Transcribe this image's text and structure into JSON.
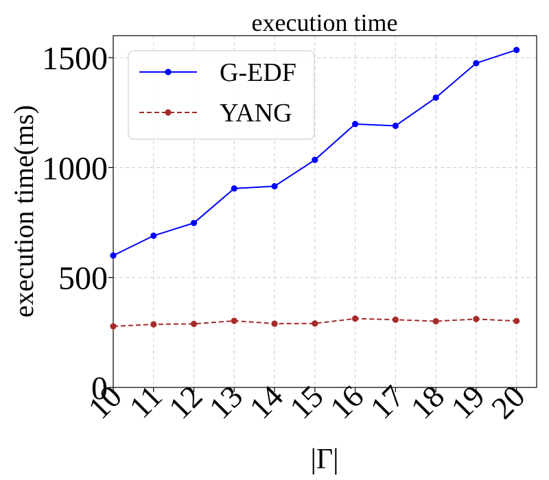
{
  "chart_data": {
    "type": "line",
    "title": "execution time",
    "xlabel": "|Γ|",
    "ylabel": "execution time(ms)",
    "x": [
      10,
      11,
      12,
      13,
      14,
      15,
      16,
      17,
      18,
      19,
      20
    ],
    "xticks": [
      "10",
      "11",
      "12",
      "13",
      "14",
      "15",
      "16",
      "17",
      "18",
      "19",
      "20"
    ],
    "yticks": [
      "0",
      "500",
      "1000",
      "1500"
    ],
    "ylim": [
      0,
      1600
    ],
    "xlim": [
      10,
      20.5
    ],
    "grid": true,
    "legend_position": "top-left",
    "series": [
      {
        "name": "G-EDF",
        "color": "#0000ff",
        "line_style": "solid",
        "values": [
          600,
          690,
          748,
          905,
          915,
          1035,
          1198,
          1190,
          1318,
          1475,
          1535
        ]
      },
      {
        "name": "YANG",
        "color": "#a52a2a",
        "line_style": "dashed",
        "values": [
          278,
          287,
          289,
          303,
          290,
          291,
          313,
          308,
          301,
          311,
          302
        ]
      }
    ]
  }
}
